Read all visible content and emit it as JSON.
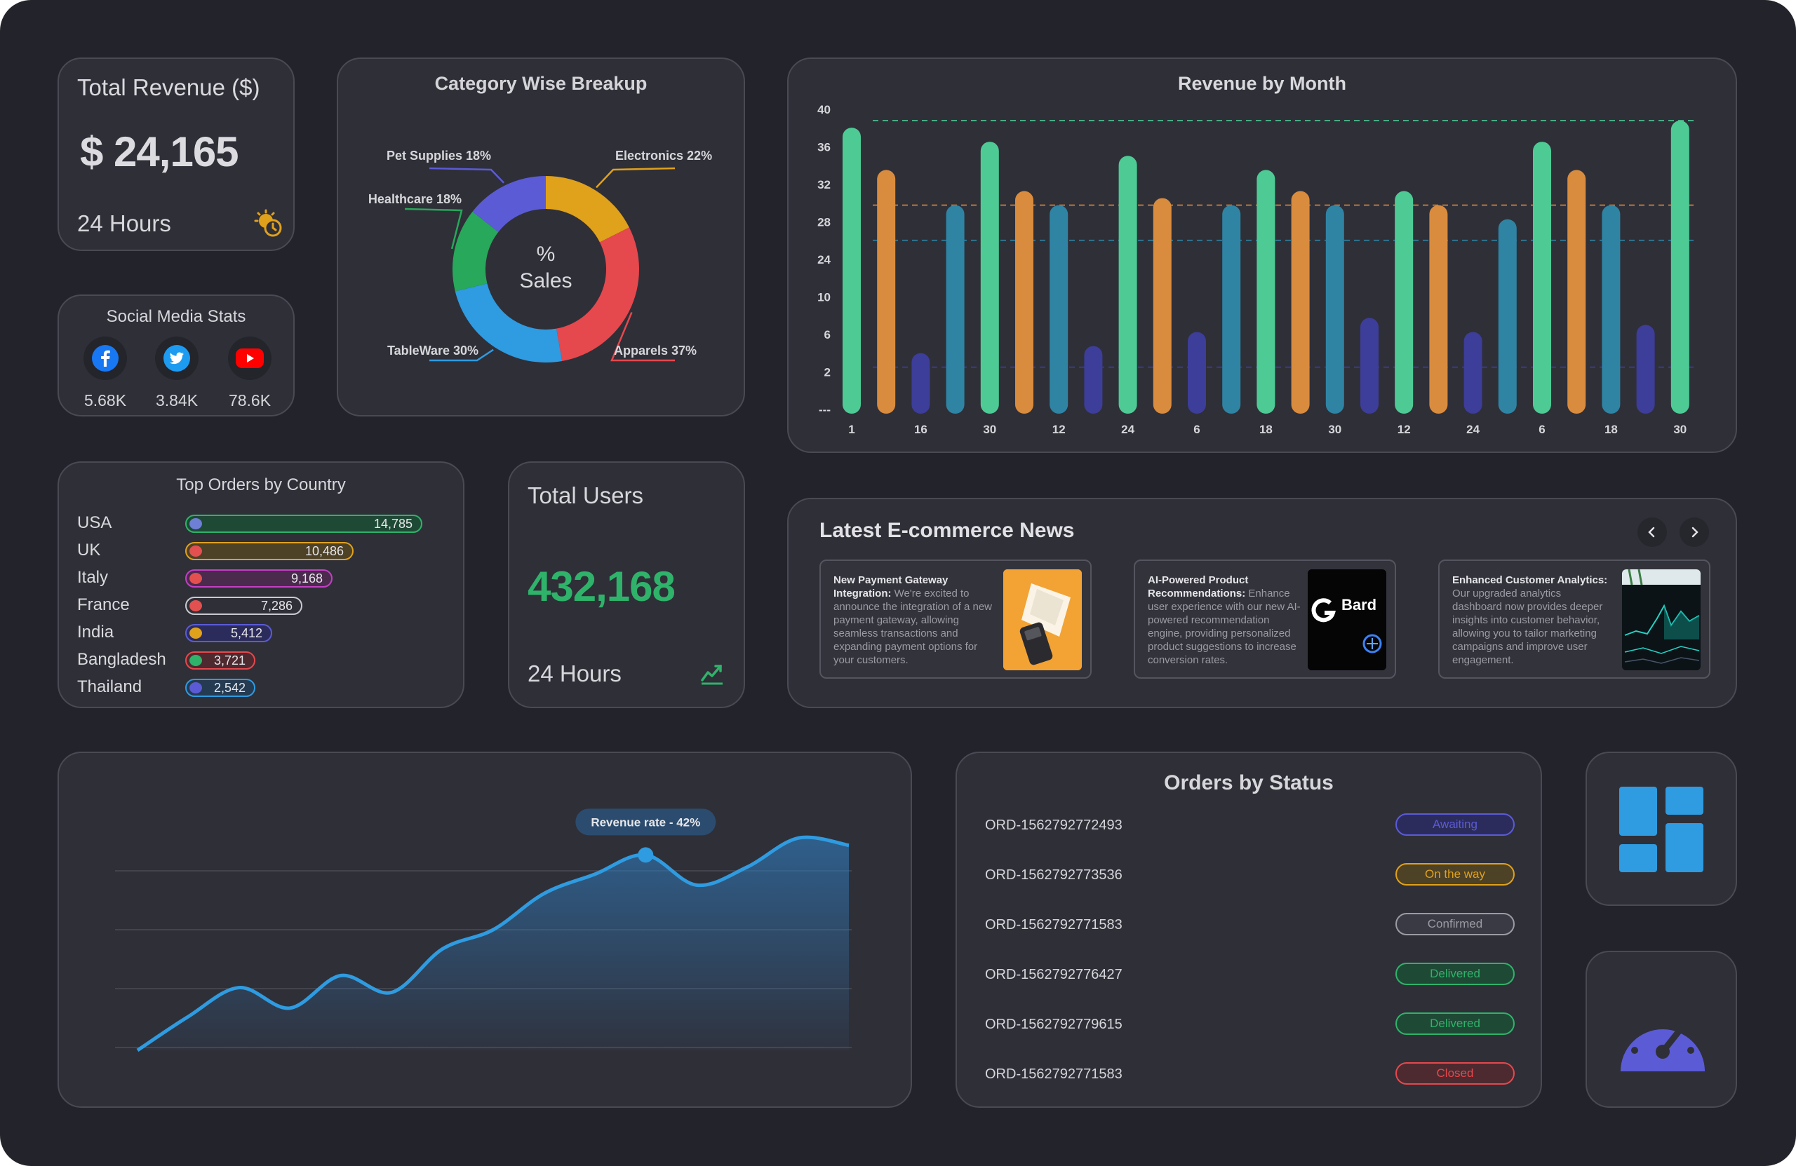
{
  "revenue": {
    "title": "Total Revenue ($)",
    "value": "$ 24,165",
    "period": "24 Hours",
    "icon": "clock-icon"
  },
  "social": {
    "title": "Social Media Stats",
    "items": [
      {
        "name": "facebook",
        "value": "5.68K",
        "icon": "facebook-icon",
        "color": "#1877f2"
      },
      {
        "name": "twitter",
        "value": "3.84K",
        "icon": "twitter-icon",
        "color": "#1d9bf0"
      },
      {
        "name": "youtube",
        "value": "78.6K",
        "icon": "youtube-icon",
        "color": "#ff0000"
      }
    ]
  },
  "category": {
    "title": "Category Wise Breakup",
    "center_top": "%",
    "center_bottom": "Sales",
    "slices": [
      {
        "label": "Electronics 22%",
        "value": 22,
        "color": "#e0a11b"
      },
      {
        "label": "Apparels 37%",
        "value": 37,
        "color": "#e5484d"
      },
      {
        "label": "TableWare 30%",
        "value": 30,
        "color": "#2f9be0"
      },
      {
        "label": "Healthcare 18%",
        "value": 18,
        "color": "#27a85a"
      },
      {
        "label": "Pet Supplies 18%",
        "value": 18,
        "color": "#5b5bd6"
      }
    ]
  },
  "chart_data": [
    {
      "type": "bar",
      "title": "Revenue by Month",
      "y_ticks": [
        "40",
        "36",
        "32",
        "28",
        "24",
        "10",
        "6",
        "2",
        "---"
      ],
      "x_labels": [
        "1",
        "16",
        "30",
        "12",
        "24",
        "6",
        "18",
        "30",
        "12",
        "24",
        "6",
        "18",
        "30"
      ],
      "values": [
        40,
        34,
        8,
        29,
        38,
        31,
        29,
        9,
        36,
        30,
        11,
        29,
        34,
        31,
        29,
        13,
        31,
        29,
        11,
        27,
        38,
        34,
        29,
        12,
        41
      ],
      "colors": [
        "#4ecb95",
        "#d98c3e",
        "#3d3d9a",
        "#2f84a4",
        "#4ecb95",
        "#d98c3e",
        "#2f84a4",
        "#3d3d9a",
        "#4ecb95",
        "#d98c3e",
        "#3d3d9a",
        "#2f84a4",
        "#4ecb95",
        "#d98c3e",
        "#2f84a4",
        "#3d3d9a",
        "#4ecb95",
        "#d98c3e",
        "#3d3d9a",
        "#2f84a4",
        "#4ecb95",
        "#d98c3e",
        "#2f84a4",
        "#3d3d9a",
        "#4ecb95"
      ],
      "ylim": [
        0,
        42
      ],
      "grid": false
    },
    {
      "type": "area",
      "title": "",
      "annotation": "Revenue rate - 42%",
      "points": [
        0,
        28,
        52,
        35,
        62,
        48,
        84,
        100,
        130,
        146,
        162,
        137,
        152,
        176,
        170
      ],
      "ylim": [
        0,
        200
      ],
      "grid": true
    }
  ],
  "countries": {
    "title": "Top Orders by Country",
    "rows": [
      {
        "name": "USA",
        "value": "14,785",
        "num": 14785,
        "color": "#2fb36a",
        "fill": "#1e4a35",
        "flag": "#6e7fd6"
      },
      {
        "name": "UK",
        "value": "10,486",
        "num": 10486,
        "color": "#e0a11b",
        "fill": "#4d4126",
        "flag": "#e35050"
      },
      {
        "name": "Italy",
        "value": "9,168",
        "num": 9168,
        "color": "#c43fc4",
        "fill": "#4a2a4d",
        "flag": "#e35050"
      },
      {
        "name": "France",
        "value": "7,286",
        "num": 7286,
        "color": "#c9c9cf",
        "fill": "#2f2f38",
        "flag": "#e35050"
      },
      {
        "name": "India",
        "value": "5,412",
        "num": 5412,
        "color": "#5b5bd6",
        "fill": "#2c2c5c",
        "flag": "#e0a11b"
      },
      {
        "name": "Bangladesh",
        "value": "3,721",
        "num": 3721,
        "color": "#e5484d",
        "fill": "#4d2a2f",
        "flag": "#2fb36a"
      },
      {
        "name": "Thailand",
        "value": "2,542",
        "num": 2542,
        "color": "#2f9be0",
        "fill": "#243b52",
        "flag": "#5b5bd6"
      }
    ]
  },
  "users": {
    "title": "Total Users",
    "value": "432,168",
    "period": "24 Hours",
    "icon": "trend-up-icon"
  },
  "news": {
    "title": "Latest E-commerce News",
    "items": [
      {
        "headline": "New Payment Gateway Integration:",
        "body": "We're excited to announce the integration of a new payment gateway, allowing seamless transactions and expanding payment options for your customers."
      },
      {
        "headline": "AI-Powered Product Recommendations:",
        "body": "Enhance user experience with our new AI-powered recommendation engine, providing personalized product suggestions to increase conversion rates."
      },
      {
        "headline": "Enhanced Customer Analytics:",
        "body": "Our upgraded analytics dashboard now provides deeper insights into customer behavior, allowing you to tailor marketing campaigns and improve user engagement."
      }
    ],
    "bard_label": "Bard"
  },
  "orders": {
    "title": "Orders by Status",
    "rows": [
      {
        "id": "ORD-1562792772493",
        "status": "Awaiting",
        "color": "#5b5bd6",
        "bg": "#2c2c5c"
      },
      {
        "id": "ORD-1562792773536",
        "status": "On the way",
        "color": "#e0a11b",
        "bg": "#4d4126"
      },
      {
        "id": "ORD-1562792771583",
        "status": "Confirmed",
        "color": "#9b9ba4",
        "bg": "#3a3a44"
      },
      {
        "id": "ORD-1562792776427",
        "status": "Delivered",
        "color": "#2fb36a",
        "bg": "#1e4a35"
      },
      {
        "id": "ORD-1562792779615",
        "status": "Delivered",
        "color": "#2fb36a",
        "bg": "#1e4a35"
      },
      {
        "id": "ORD-1562792771583",
        "status": "Closed",
        "color": "#e5484d",
        "bg": "#4d2a2f"
      }
    ]
  },
  "tiles": {
    "dashboard_icon": "dashboard-grid-icon",
    "speed_icon": "speedometer-icon",
    "accent": "#2f9be0",
    "speed_color": "#5b5bd6"
  }
}
